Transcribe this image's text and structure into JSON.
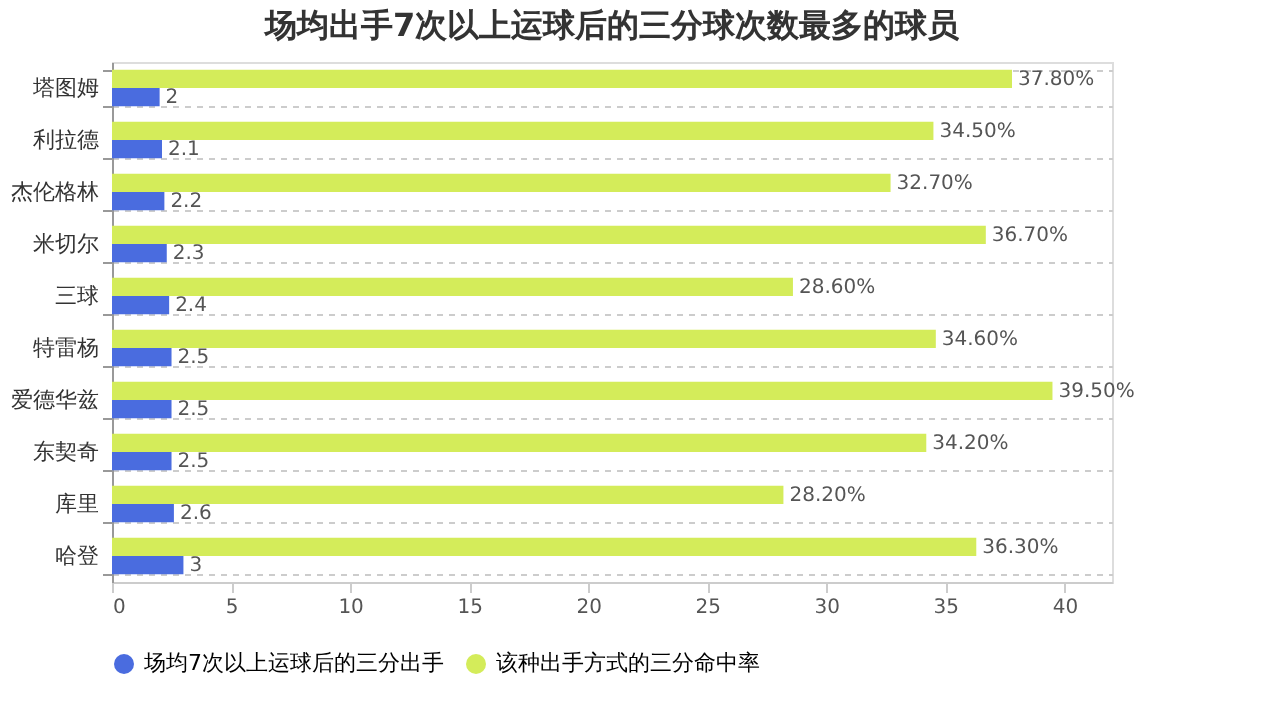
{
  "chart_data": {
    "type": "bar",
    "orientation": "horizontal",
    "title": "场均出手7次以上运球后的三分球次数最多的球员",
    "categories": [
      "塔图姆",
      "利拉德",
      "杰伦格林",
      "米切尔",
      "三球",
      "特雷杨",
      "爱德华兹",
      "东契奇",
      "库里",
      "哈登"
    ],
    "series": [
      {
        "name": "场均7次以上运球后的三分出手",
        "color": "#4a6cdf",
        "values": [
          2,
          2.1,
          2.2,
          2.3,
          2.4,
          2.5,
          2.5,
          2.5,
          2.6,
          3
        ],
        "value_labels": [
          "2",
          "2.1",
          "2.2",
          "2.3",
          "2.4",
          "2.5",
          "2.5",
          "2.5",
          "2.6",
          "3"
        ]
      },
      {
        "name": "该种出手方式的三分命中率",
        "color": "#d4ec5a",
        "values": [
          37.8,
          34.5,
          32.7,
          36.7,
          28.6,
          34.6,
          39.5,
          34.2,
          28.2,
          36.3
        ],
        "value_labels": [
          "37.80%",
          "34.50%",
          "32.70%",
          "36.70%",
          "28.60%",
          "34.60%",
          "39.50%",
          "34.20%",
          "28.20%",
          "36.30%"
        ]
      }
    ],
    "xlim": [
      0,
      42
    ],
    "xticks": [
      0,
      5,
      10,
      15,
      20,
      25,
      30,
      35,
      40
    ],
    "grid": "y",
    "legend": "bottom"
  }
}
